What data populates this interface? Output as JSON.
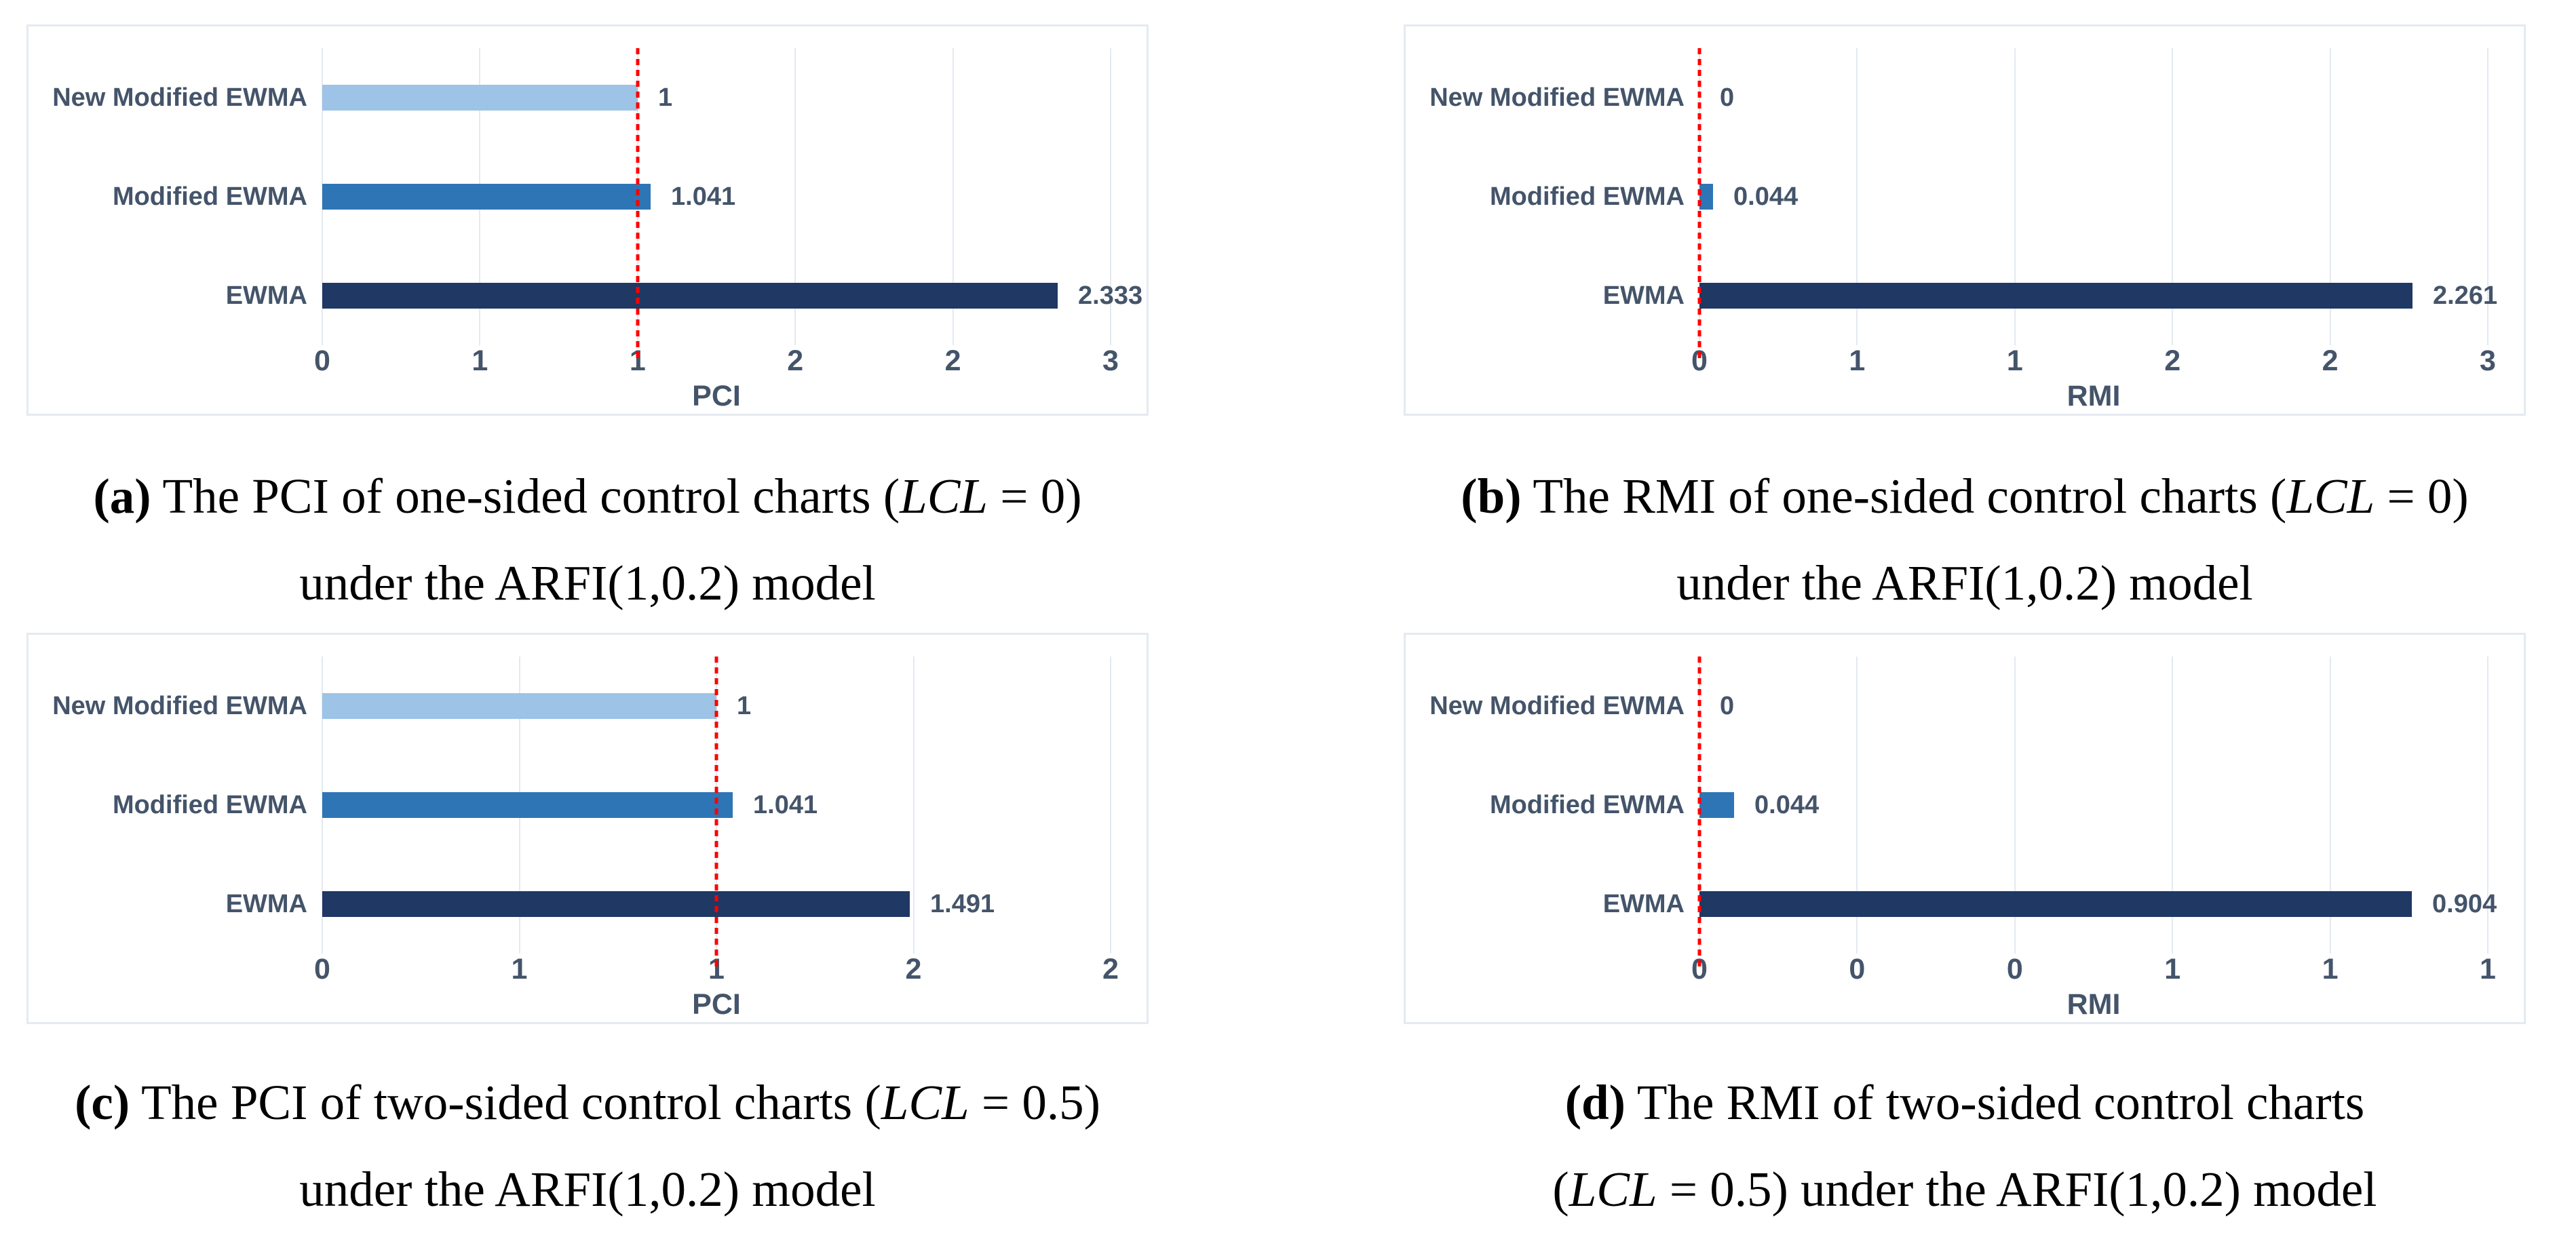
{
  "figure": {
    "description": "Four horizontal bar charts comparing EWMA control charts by PCI and RMI under the ARFI(1,0.2) model"
  },
  "colors": {
    "series_fill": [
      "#9dc3e6",
      "#2e75b6",
      "#1f3864"
    ],
    "label_text": "#44546a",
    "gridline": "#e3e9f1",
    "ref_line": "#ff0000",
    "panel_border": "#e5eaf1",
    "caption_text": "#000000"
  },
  "chart_data": [
    {
      "id": "a",
      "type": "bar",
      "orientation": "horizontal",
      "categories": [
        "New Modified EWMA",
        "Modified EWMA",
        "EWMA"
      ],
      "values": [
        1,
        1.041,
        2.333
      ],
      "value_labels": [
        "1",
        "1.041",
        "2.333"
      ],
      "xlabel": "PCI",
      "xlim": [
        0,
        2.5
      ],
      "tick_values": [
        0,
        0.5,
        1,
        1.5,
        2,
        2.5
      ],
      "tick_labels": [
        "0",
        "1",
        "1",
        "2",
        "2",
        "3"
      ],
      "ref_line_x": 1,
      "grid": true,
      "legend": "none",
      "caption_lines": [
        [
          {
            "t": "(a)",
            "b": true
          },
          {
            "t": " The PCI of one-sided control charts ("
          },
          {
            "t": "LCL",
            "i": true
          },
          {
            "t": " = 0)"
          }
        ],
        [
          {
            "t": "under the ARFI(1,0.2) model"
          }
        ]
      ]
    },
    {
      "id": "b",
      "type": "bar",
      "orientation": "horizontal",
      "categories": [
        "New Modified EWMA",
        "Modified EWMA",
        "EWMA"
      ],
      "values": [
        0,
        0.044,
        2.261
      ],
      "value_labels": [
        "0",
        "0.044",
        "2.261"
      ],
      "xlabel": "RMI",
      "xlim": [
        0,
        2.5
      ],
      "tick_values": [
        0,
        0.5,
        1,
        1.5,
        2,
        2.5
      ],
      "tick_labels": [
        "0",
        "1",
        "1",
        "2",
        "2",
        "3"
      ],
      "ref_line_x": 0,
      "grid": true,
      "legend": "none",
      "caption_lines": [
        [
          {
            "t": "(b)",
            "b": true
          },
          {
            "t": " The RMI of one-sided control charts ("
          },
          {
            "t": "LCL",
            "i": true
          },
          {
            "t": " = 0)"
          }
        ],
        [
          {
            "t": "under the ARFI(1,0.2) model"
          }
        ]
      ]
    },
    {
      "id": "c",
      "type": "bar",
      "orientation": "horizontal",
      "categories": [
        "New Modified EWMA",
        "Modified EWMA",
        "EWMA"
      ],
      "values": [
        1,
        1.041,
        1.491
      ],
      "value_labels": [
        "1",
        "1.041",
        "1.491"
      ],
      "xlabel": "PCI",
      "xlim": [
        0,
        2
      ],
      "tick_values": [
        0,
        0.5,
        1,
        1.5,
        2
      ],
      "tick_labels": [
        "0",
        "1",
        "1",
        "2",
        "2"
      ],
      "ref_line_x": 1,
      "grid": true,
      "legend": "none",
      "caption_lines": [
        [
          {
            "t": "(c)",
            "b": true
          },
          {
            "t": " The PCI of two-sided control charts ("
          },
          {
            "t": "LCL",
            "i": true
          },
          {
            "t": " = 0.5)"
          }
        ],
        [
          {
            "t": "under the ARFI(1,0.2) model"
          }
        ]
      ]
    },
    {
      "id": "d",
      "type": "bar",
      "orientation": "horizontal",
      "categories": [
        "New Modified EWMA",
        "Modified EWMA",
        "EWMA"
      ],
      "values": [
        0,
        0.044,
        0.904
      ],
      "value_labels": [
        "0",
        "0.044",
        "0.904"
      ],
      "xlabel": "RMI",
      "xlim": [
        0,
        1
      ],
      "tick_values": [
        0,
        0.2,
        0.4,
        0.6,
        0.8,
        1
      ],
      "tick_labels": [
        "0",
        "0",
        "0",
        "1",
        "1",
        "1"
      ],
      "ref_line_x": 0,
      "grid": true,
      "legend": "none",
      "caption_lines": [
        [
          {
            "t": "(d)",
            "b": true
          },
          {
            "t": " The RMI of two-sided control charts"
          }
        ],
        [
          {
            "t": "("
          },
          {
            "t": "LCL",
            "i": true
          },
          {
            "t": " = 0.5) under the ARFI(1,0.2) model"
          }
        ]
      ]
    }
  ]
}
